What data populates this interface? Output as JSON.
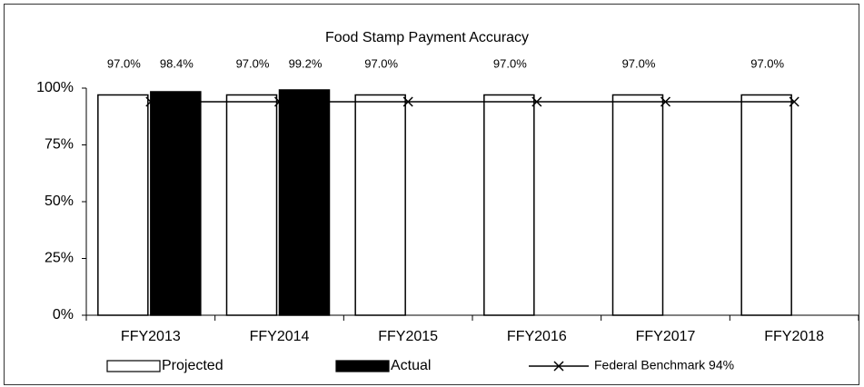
{
  "chart_data": {
    "type": "bar",
    "title": "Food Stamp Payment Accuracy",
    "categories": [
      "FFY2013",
      "FFY2014",
      "FFY2015",
      "FFY2016",
      "FFY2017",
      "FFY2018"
    ],
    "series": [
      {
        "name": "Projected",
        "type": "bar",
        "color": "#ffffff",
        "values": [
          97.0,
          97.0,
          97.0,
          97.0,
          97.0,
          97.0
        ],
        "value_labels": [
          "97.0%",
          "97.0%",
          "97.0%",
          "97.0%",
          "97.0%",
          "97.0%"
        ]
      },
      {
        "name": "Actual",
        "type": "bar",
        "color": "#000000",
        "values": [
          98.4,
          99.2,
          null,
          null,
          null,
          null
        ],
        "value_labels": [
          "98.4%",
          "99.2%",
          null,
          null,
          null,
          null
        ]
      },
      {
        "name": "Federal Benchmark 94%",
        "type": "line",
        "color": "#000000",
        "values": [
          94,
          94,
          94,
          94,
          94,
          94
        ]
      }
    ],
    "ylim": [
      0,
      100
    ],
    "yticks": [
      {
        "value": 0,
        "label": "0%"
      },
      {
        "value": 25,
        "label": "25%"
      },
      {
        "value": 50,
        "label": "50%"
      },
      {
        "value": 75,
        "label": "75%"
      },
      {
        "value": 100,
        "label": "100%"
      }
    ],
    "grid": false,
    "legend": "bottom"
  }
}
